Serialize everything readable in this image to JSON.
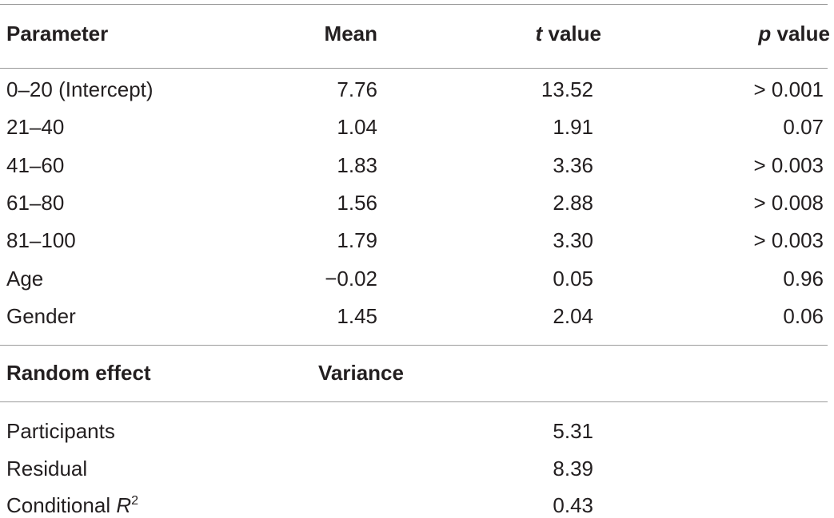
{
  "table": {
    "columns": [
      {
        "text": "Parameter"
      },
      {
        "text": "Mean"
      },
      {
        "symbol": "t",
        "text": "value"
      },
      {
        "symbol": "p",
        "text": "value"
      }
    ],
    "rows": [
      [
        "0–20 (Intercept)",
        "7.76",
        "13.52",
        "> 0.001"
      ],
      [
        "21–40",
        "1.04",
        "1.91",
        "0.07"
      ],
      [
        "41–60",
        "1.83",
        "3.36",
        "> 0.003"
      ],
      [
        "61–80",
        "1.56",
        "2.88",
        "> 0.008"
      ],
      [
        "81–100",
        "1.79",
        "3.30",
        "> 0.003"
      ],
      [
        "Age",
        "−0.02",
        "0.05",
        "0.96"
      ],
      [
        "Gender",
        "1.45",
        "2.04",
        "0.06"
      ]
    ],
    "random_effects": {
      "columns": [
        "Random effect",
        "Variance"
      ],
      "rows": [
        {
          "label": {
            "text": "Participants"
          },
          "value": "5.31"
        },
        {
          "label": {
            "text": "Residual"
          },
          "value": "8.39"
        },
        {
          "label": {
            "text": "Conditional",
            "symbol": "R",
            "superscript": "2"
          },
          "value": "0.43"
        }
      ]
    }
  }
}
